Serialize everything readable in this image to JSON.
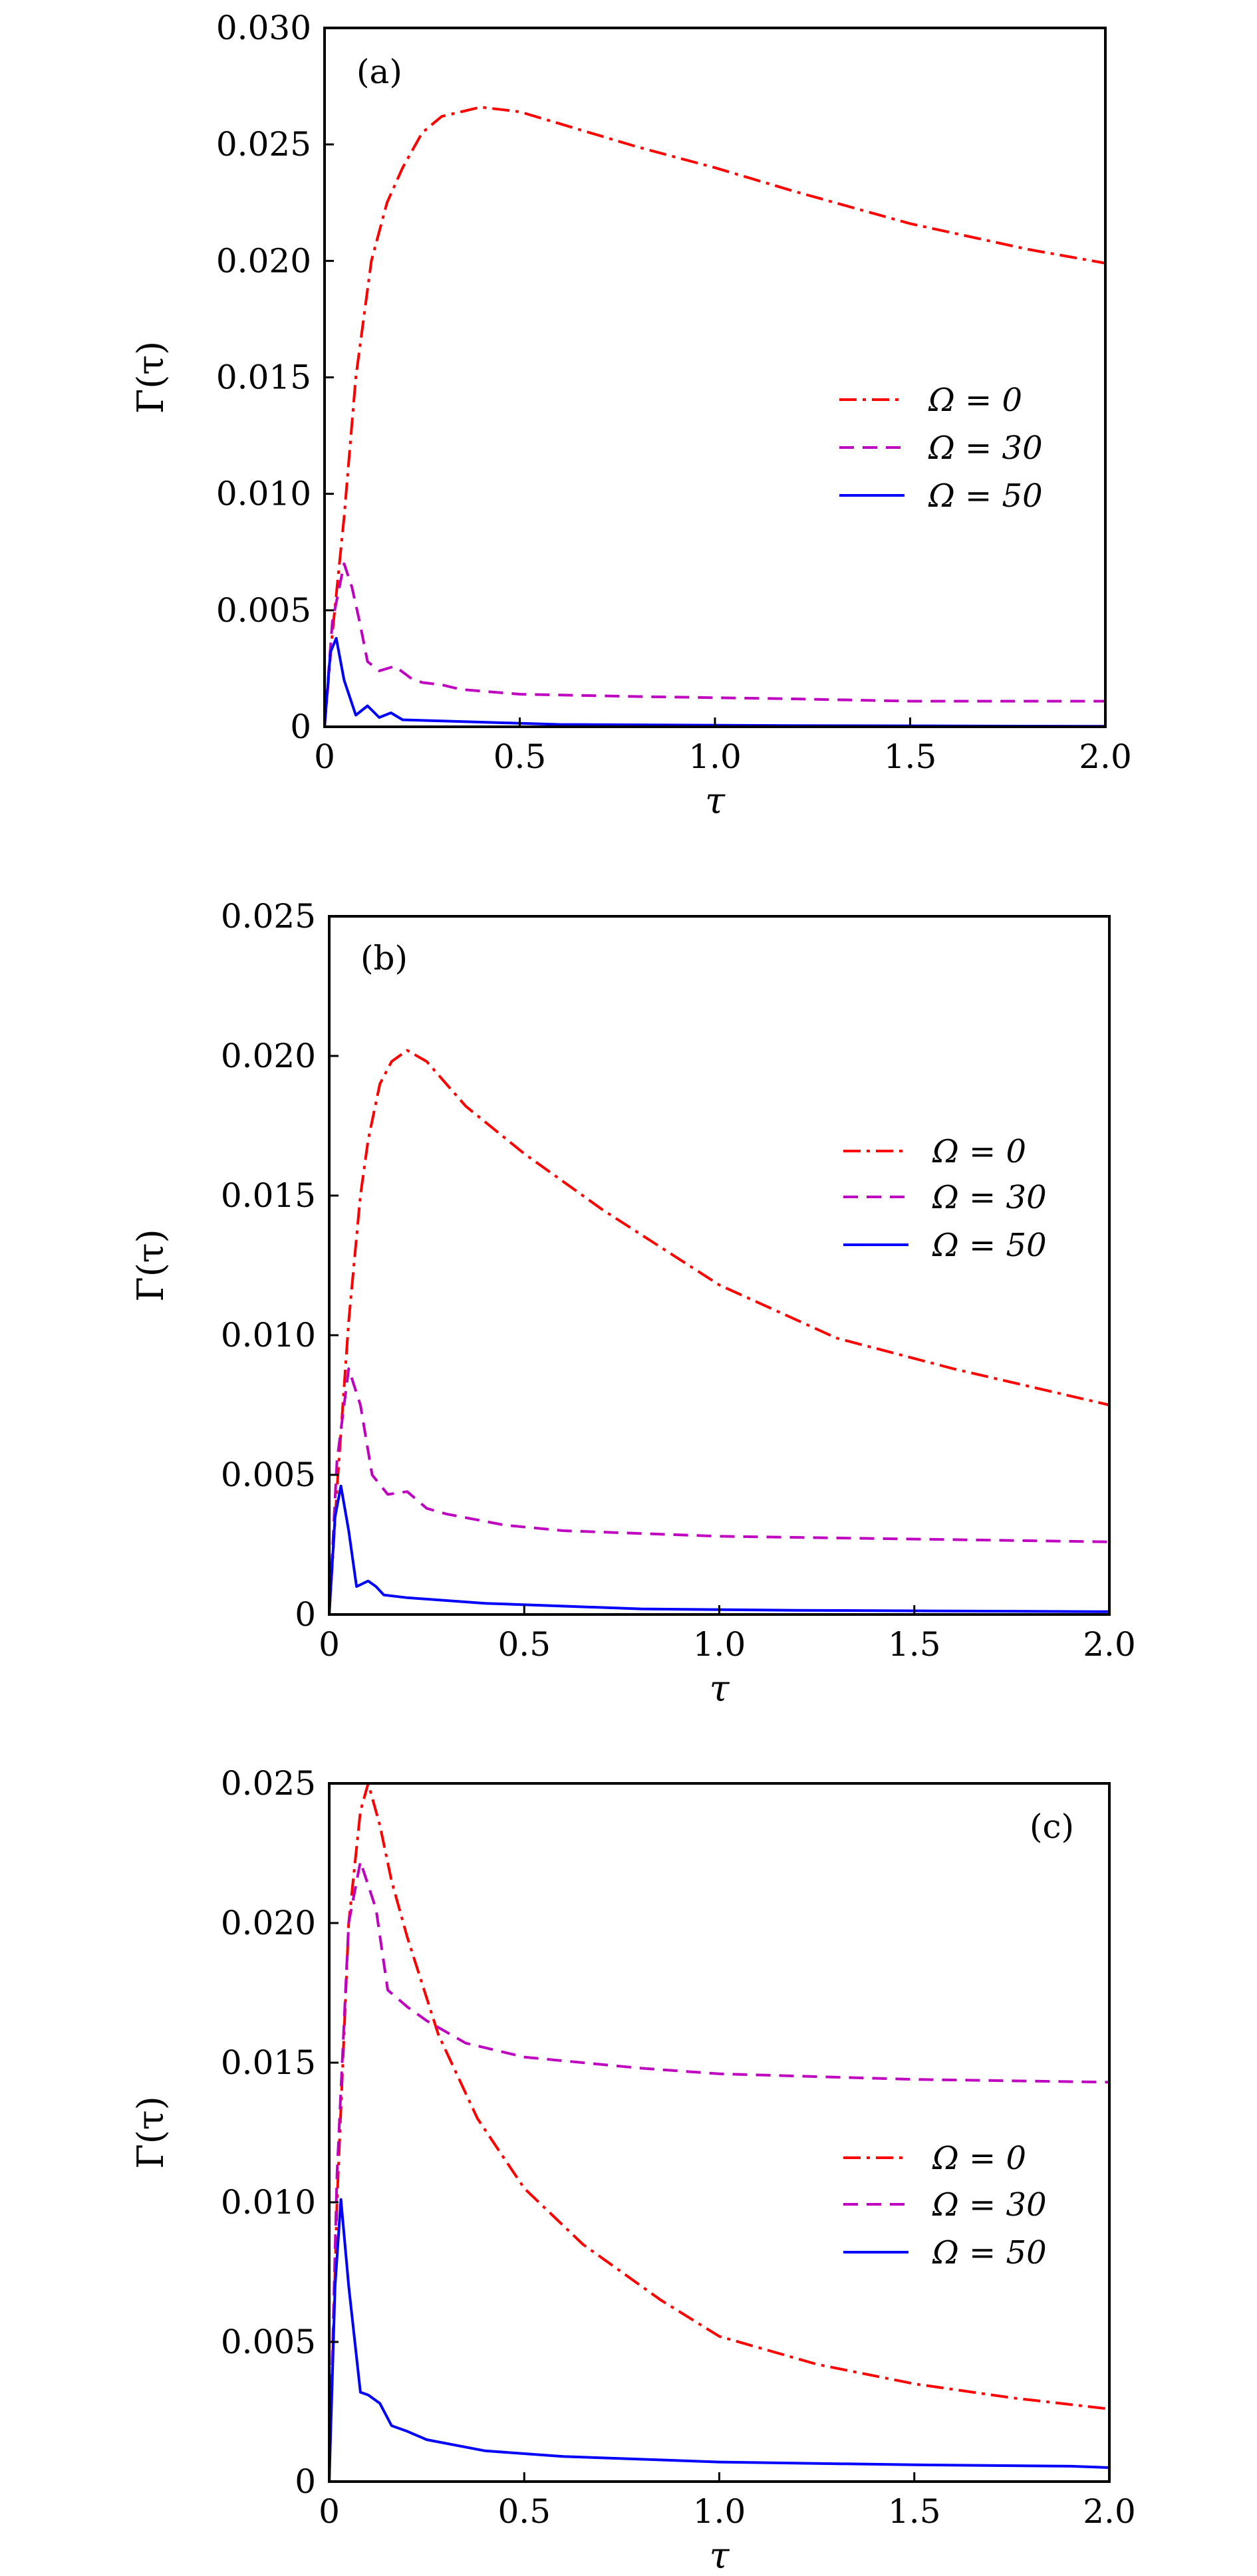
{
  "colors": {
    "omega0": "#ff0000",
    "omega30": "#c000c0",
    "omega50": "#0000ff",
    "axis": "#000000"
  },
  "chart_data": [
    {
      "type": "line",
      "panel_label": "(a)",
      "xlabel": "τ",
      "ylabel": "Γ(τ)",
      "xlim": [
        0,
        2.0
      ],
      "ylim": [
        0,
        0.03
      ],
      "xticks": [
        0,
        0.5,
        1.0,
        1.5,
        2.0
      ],
      "xtick_labels": [
        "0",
        "0.5",
        "1.0",
        "1.5",
        "2.0"
      ],
      "yticks": [
        0,
        0.005,
        0.01,
        0.015,
        0.02,
        0.025,
        0.03
      ],
      "ytick_labels": [
        "0",
        "0.005",
        "0.010",
        "0.015",
        "0.020",
        "0.025",
        "0.030"
      ],
      "legend_position": "center-right",
      "series": [
        {
          "name": "Ω = 0",
          "style": "dashdot",
          "color_key": "omega0",
          "x": [
            0,
            0.02,
            0.05,
            0.08,
            0.12,
            0.16,
            0.2,
            0.25,
            0.3,
            0.4,
            0.5,
            0.6,
            0.8,
            1.0,
            1.2,
            1.5,
            1.8,
            2.0
          ],
          "y": [
            0,
            0.004,
            0.009,
            0.015,
            0.02,
            0.0225,
            0.024,
            0.0255,
            0.0262,
            0.0266,
            0.0264,
            0.0259,
            0.0249,
            0.024,
            0.023,
            0.0216,
            0.0205,
            0.0199
          ]
        },
        {
          "name": "Ω = 30",
          "style": "dashed",
          "color_key": "omega30",
          "x": [
            0,
            0.02,
            0.05,
            0.07,
            0.09,
            0.11,
            0.14,
            0.18,
            0.22,
            0.25,
            0.3,
            0.35,
            0.5,
            0.8,
            1.2,
            1.5,
            2.0
          ],
          "y": [
            0,
            0.0045,
            0.007,
            0.006,
            0.0045,
            0.0028,
            0.0024,
            0.0026,
            0.0021,
            0.0019,
            0.0018,
            0.0016,
            0.0014,
            0.0013,
            0.0012,
            0.0011,
            0.0011
          ]
        },
        {
          "name": "Ω = 50",
          "style": "solid",
          "color_key": "omega50",
          "x": [
            0,
            0.015,
            0.03,
            0.05,
            0.08,
            0.11,
            0.14,
            0.17,
            0.2,
            0.3,
            0.4,
            0.6,
            1.2,
            2.0
          ],
          "y": [
            0,
            0.0032,
            0.0038,
            0.002,
            0.0005,
            0.0009,
            0.0004,
            0.0006,
            0.0003,
            0.00025,
            0.0002,
            0.0001,
            5e-05,
            2e-05
          ]
        }
      ]
    },
    {
      "type": "line",
      "panel_label": "(b)",
      "xlabel": "τ",
      "ylabel": "Γ(τ)",
      "xlim": [
        0,
        2.0
      ],
      "ylim": [
        0,
        0.025
      ],
      "xticks": [
        0,
        0.5,
        1.0,
        1.5,
        2.0
      ],
      "xtick_labels": [
        "0",
        "0.5",
        "1.0",
        "1.5",
        "2.0"
      ],
      "yticks": [
        0,
        0.005,
        0.01,
        0.015,
        0.02,
        0.025
      ],
      "ytick_labels": [
        "0",
        "0.005",
        "0.010",
        "0.015",
        "0.020",
        "0.025"
      ],
      "legend_position": "upper-right",
      "series": [
        {
          "name": "Ω = 0",
          "style": "dashdot",
          "color_key": "omega0",
          "x": [
            0,
            0.02,
            0.05,
            0.08,
            0.1,
            0.13,
            0.16,
            0.2,
            0.25,
            0.35,
            0.5,
            0.7,
            1.0,
            1.3,
            1.6,
            2.0
          ],
          "y": [
            0,
            0.0045,
            0.0105,
            0.015,
            0.017,
            0.019,
            0.0198,
            0.0202,
            0.0198,
            0.0182,
            0.0165,
            0.0145,
            0.0118,
            0.0099,
            0.0088,
            0.0075
          ]
        },
        {
          "name": "Ω = 30",
          "style": "dashed",
          "color_key": "omega30",
          "x": [
            0,
            0.02,
            0.05,
            0.08,
            0.11,
            0.15,
            0.2,
            0.25,
            0.3,
            0.45,
            0.6,
            1.0,
            1.5,
            2.0
          ],
          "y": [
            0,
            0.0055,
            0.0088,
            0.0075,
            0.005,
            0.0043,
            0.0044,
            0.0038,
            0.0036,
            0.0032,
            0.003,
            0.0028,
            0.0027,
            0.0026
          ]
        },
        {
          "name": "Ω = 50",
          "style": "solid",
          "color_key": "omega50",
          "x": [
            0,
            0.015,
            0.03,
            0.05,
            0.07,
            0.1,
            0.12,
            0.14,
            0.2,
            0.4,
            0.8,
            1.2,
            2.0
          ],
          "y": [
            0,
            0.0035,
            0.0046,
            0.003,
            0.001,
            0.0012,
            0.001,
            0.0007,
            0.0006,
            0.0004,
            0.0002,
            0.00015,
            0.0001
          ]
        }
      ]
    },
    {
      "type": "line",
      "panel_label": "(c)",
      "xlabel": "τ",
      "ylabel": "Γ(τ)",
      "xlim": [
        0,
        2.0
      ],
      "ylim": [
        0,
        0.025
      ],
      "xticks": [
        0,
        0.5,
        1.0,
        1.5,
        2.0
      ],
      "xtick_labels": [
        "0",
        "0.5",
        "1.0",
        "1.5",
        "2.0"
      ],
      "yticks": [
        0,
        0.005,
        0.01,
        0.015,
        0.02,
        0.025
      ],
      "ytick_labels": [
        "0",
        "0.005",
        "0.010",
        "0.015",
        "0.020",
        "0.025"
      ],
      "legend_position": "center-right",
      "series": [
        {
          "name": "Ω = 0",
          "style": "dashdot",
          "color_key": "omega0",
          "x": [
            0,
            0.02,
            0.05,
            0.08,
            0.1,
            0.13,
            0.16,
            0.2,
            0.28,
            0.38,
            0.5,
            0.65,
            0.85,
            1.0,
            1.25,
            1.5,
            1.75,
            2.0
          ],
          "y": [
            0,
            0.01,
            0.02,
            0.024,
            0.025,
            0.0235,
            0.0215,
            0.0195,
            0.016,
            0.013,
            0.0105,
            0.0085,
            0.0065,
            0.0052,
            0.0042,
            0.0035,
            0.003,
            0.0026
          ]
        },
        {
          "name": "Ω = 30",
          "style": "dashed",
          "color_key": "omega30",
          "x": [
            0,
            0.02,
            0.05,
            0.08,
            0.12,
            0.15,
            0.2,
            0.25,
            0.35,
            0.5,
            0.8,
            1.0,
            1.5,
            2.0
          ],
          "y": [
            0,
            0.011,
            0.02,
            0.0222,
            0.0205,
            0.0176,
            0.017,
            0.0165,
            0.0157,
            0.0152,
            0.0148,
            0.0146,
            0.0144,
            0.0143
          ]
        },
        {
          "name": "Ω = 50",
          "style": "solid",
          "color_key": "omega50",
          "x": [
            0,
            0.015,
            0.03,
            0.05,
            0.08,
            0.1,
            0.13,
            0.16,
            0.2,
            0.25,
            0.4,
            0.6,
            1.0,
            1.5,
            1.9,
            2.0
          ],
          "y": [
            0,
            0.007,
            0.0101,
            0.007,
            0.0032,
            0.0031,
            0.0028,
            0.002,
            0.0018,
            0.0015,
            0.0011,
            0.0009,
            0.0007,
            0.0006,
            0.00055,
            0.0005
          ]
        }
      ]
    }
  ]
}
